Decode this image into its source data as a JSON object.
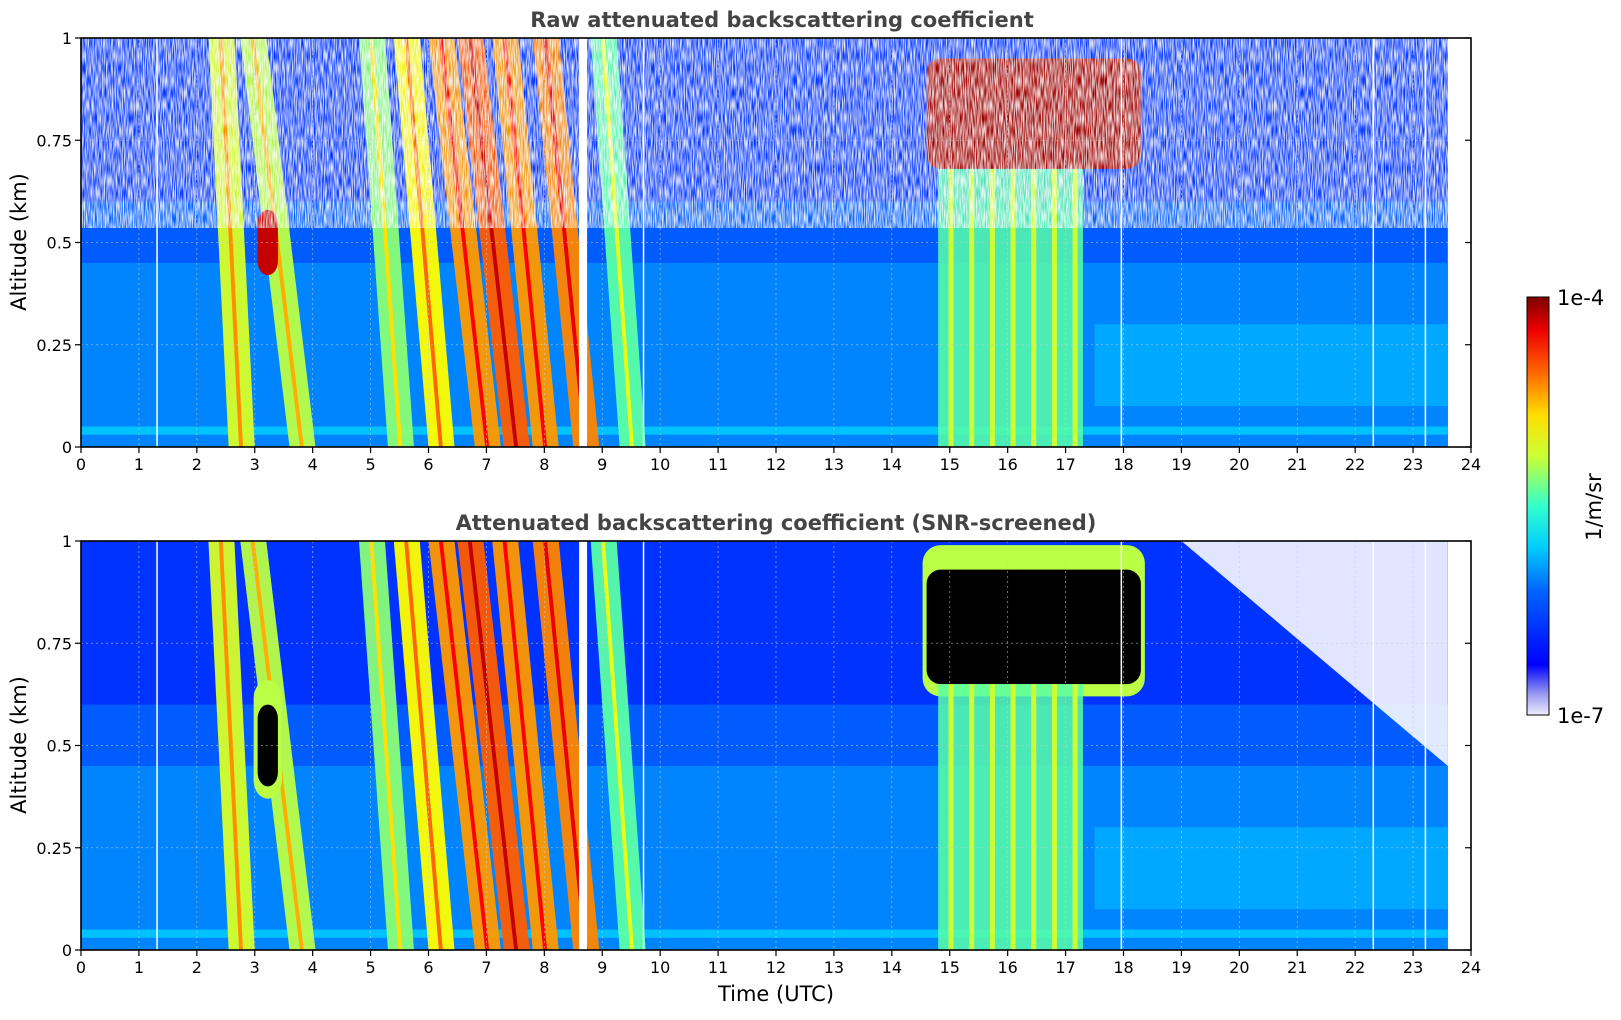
{
  "figure": {
    "xlabel": "Time (UTC)",
    "colorbar": {
      "label": "1/m/sr",
      "max_label": "1e-4",
      "min_label": "1e-7",
      "colormap": "jet",
      "scale": "log",
      "range": [
        1e-07,
        0.0001
      ]
    }
  },
  "chart_data": [
    {
      "type": "heatmap",
      "title": "Raw attenuated backscattering coefficient",
      "ylabel": "Altitude (km)",
      "xlim": [
        0,
        24
      ],
      "ylim": [
        0,
        1
      ],
      "x_ticks": [
        "0",
        "1",
        "2",
        "3",
        "4",
        "5",
        "6",
        "7",
        "8",
        "9",
        "10",
        "11",
        "12",
        "13",
        "14",
        "15",
        "16",
        "17",
        "18",
        "19",
        "20",
        "21",
        "22",
        "23",
        "24"
      ],
      "y_ticks": [
        "0",
        "0.25",
        "0.5",
        "0.75",
        "1"
      ],
      "grid": true,
      "data_end_hour": 23.6,
      "gaps_hours": [
        1.3,
        8.6,
        9.7,
        17.95,
        22.3,
        23.2
      ],
      "features": [
        {
          "kind": "fall-streak",
          "t_top": 2.2,
          "t_bottom": 2.55,
          "level": 0.58
        },
        {
          "kind": "fall-streak",
          "t_top": 2.75,
          "t_bottom": 3.6,
          "level": 0.55
        },
        {
          "kind": "cloud",
          "t_range": [
            3.05,
            3.4
          ],
          "alt_range": [
            0.42,
            0.58
          ],
          "level": 0.93
        },
        {
          "kind": "fall-streak",
          "t_top": 4.8,
          "t_bottom": 5.3,
          "level": 0.5
        },
        {
          "kind": "fall-streak",
          "t_top": 5.4,
          "t_bottom": 6.0,
          "level": 0.62
        },
        {
          "kind": "fall-streak",
          "t_top": 6.0,
          "t_bottom": 6.8,
          "level": 0.72
        },
        {
          "kind": "fall-streak",
          "t_top": 6.5,
          "t_bottom": 7.3,
          "level": 0.78
        },
        {
          "kind": "fall-streak",
          "t_top": 7.1,
          "t_bottom": 7.8,
          "level": 0.72
        },
        {
          "kind": "fall-streak",
          "t_top": 7.8,
          "t_bottom": 8.5,
          "level": 0.74
        },
        {
          "kind": "fall-streak",
          "t_top": 8.8,
          "t_bottom": 9.3,
          "level": 0.45
        },
        {
          "kind": "cloud",
          "t_range": [
            14.6,
            18.3
          ],
          "alt_range": [
            0.68,
            0.95
          ],
          "level": 0.97
        },
        {
          "kind": "precipitation",
          "t_range": [
            14.8,
            17.3
          ],
          "alt_range": [
            0,
            0.68
          ],
          "level": 0.45
        },
        {
          "kind": "aerosol-layer",
          "t_range": [
            17.5,
            23.6
          ],
          "alt_range": [
            0.1,
            0.3
          ],
          "level": 0.3
        }
      ]
    },
    {
      "type": "heatmap",
      "title": "Attenuated backscattering coefficient (SNR-screened)",
      "ylabel": "Altitude (km)",
      "xlim": [
        0,
        24
      ],
      "ylim": [
        0,
        1
      ],
      "x_ticks": [
        "0",
        "1",
        "2",
        "3",
        "4",
        "5",
        "6",
        "7",
        "8",
        "9",
        "10",
        "11",
        "12",
        "13",
        "14",
        "15",
        "16",
        "17",
        "18",
        "19",
        "20",
        "21",
        "22",
        "23",
        "24"
      ],
      "y_ticks": [
        "0",
        "0.25",
        "0.5",
        "0.75",
        "1"
      ],
      "grid": true,
      "data_end_hour": 23.6,
      "gaps_hours": [
        1.3,
        8.6,
        9.7,
        17.95,
        22.3,
        23.2
      ],
      "saturated_color": "#000000",
      "features": [
        {
          "kind": "fall-streak",
          "t_top": 2.2,
          "t_bottom": 2.55,
          "level": 0.58
        },
        {
          "kind": "fall-streak",
          "t_top": 2.75,
          "t_bottom": 3.6,
          "level": 0.55
        },
        {
          "kind": "saturated",
          "t_range": [
            3.05,
            3.4
          ],
          "alt_range": [
            0.4,
            0.6
          ]
        },
        {
          "kind": "fall-streak",
          "t_top": 4.8,
          "t_bottom": 5.3,
          "level": 0.5
        },
        {
          "kind": "fall-streak",
          "t_top": 5.4,
          "t_bottom": 6.0,
          "level": 0.62
        },
        {
          "kind": "fall-streak",
          "t_top": 6.0,
          "t_bottom": 6.8,
          "level": 0.72
        },
        {
          "kind": "fall-streak",
          "t_top": 6.5,
          "t_bottom": 7.3,
          "level": 0.78
        },
        {
          "kind": "fall-streak",
          "t_top": 7.1,
          "t_bottom": 7.8,
          "level": 0.72
        },
        {
          "kind": "fall-streak",
          "t_top": 7.8,
          "t_bottom": 8.5,
          "level": 0.74
        },
        {
          "kind": "fall-streak",
          "t_top": 8.8,
          "t_bottom": 9.3,
          "level": 0.45
        },
        {
          "kind": "saturated",
          "t_range": [
            14.6,
            18.3
          ],
          "alt_range": [
            0.65,
            0.93
          ]
        },
        {
          "kind": "precipitation",
          "t_range": [
            14.8,
            17.3
          ],
          "alt_range": [
            0,
            0.65
          ],
          "level": 0.45
        },
        {
          "kind": "aerosol-layer",
          "t_range": [
            17.5,
            23.6
          ],
          "alt_range": [
            0.1,
            0.3
          ],
          "level": 0.3
        },
        {
          "kind": "screened-out",
          "region": "upper-right",
          "t_range": [
            19,
            23.6
          ],
          "alt_range": [
            0.45,
            1
          ]
        }
      ]
    }
  ]
}
